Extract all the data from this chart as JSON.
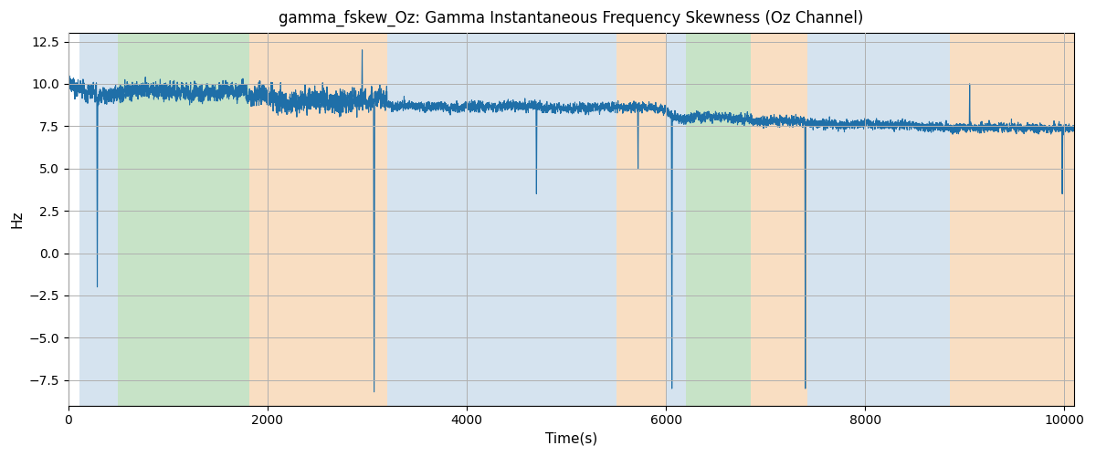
{
  "title": "gamma_fskew_Oz: Gamma Instantaneous Frequency Skewness (Oz Channel)",
  "xlabel": "Time(s)",
  "ylabel": "Hz",
  "xlim": [
    0,
    10100
  ],
  "ylim": [
    -9,
    13
  ],
  "yticks": [
    -7.5,
    -5.0,
    -2.5,
    0.0,
    2.5,
    5.0,
    7.5,
    10.0,
    12.5
  ],
  "xticks": [
    0,
    2000,
    4000,
    6000,
    8000,
    10000
  ],
  "line_color": "#1f6fa8",
  "line_width": 0.8,
  "background_color": "#ffffff",
  "grid_color": "#b0b0b0",
  "colored_bands": [
    {
      "xstart": 110,
      "xend": 500,
      "color": "#adc8e0",
      "alpha": 0.5
    },
    {
      "xstart": 500,
      "xend": 1820,
      "color": "#90c890",
      "alpha": 0.5
    },
    {
      "xstart": 1820,
      "xend": 3200,
      "color": "#f5c89a",
      "alpha": 0.6
    },
    {
      "xstart": 3200,
      "xend": 5500,
      "color": "#adc8e0",
      "alpha": 0.5
    },
    {
      "xstart": 5500,
      "xend": 6000,
      "color": "#f5c89a",
      "alpha": 0.6
    },
    {
      "xstart": 6000,
      "xend": 6200,
      "color": "#adc8e0",
      "alpha": 0.5
    },
    {
      "xstart": 6200,
      "xend": 6850,
      "color": "#90c890",
      "alpha": 0.5
    },
    {
      "xstart": 6850,
      "xend": 7420,
      "color": "#f5c89a",
      "alpha": 0.6
    },
    {
      "xstart": 7420,
      "xend": 8850,
      "color": "#adc8e0",
      "alpha": 0.5
    },
    {
      "xstart": 8850,
      "xend": 10100,
      "color": "#f5c89a",
      "alpha": 0.6
    }
  ],
  "figsize": [
    12.0,
    5.0
  ],
  "dpi": 100
}
